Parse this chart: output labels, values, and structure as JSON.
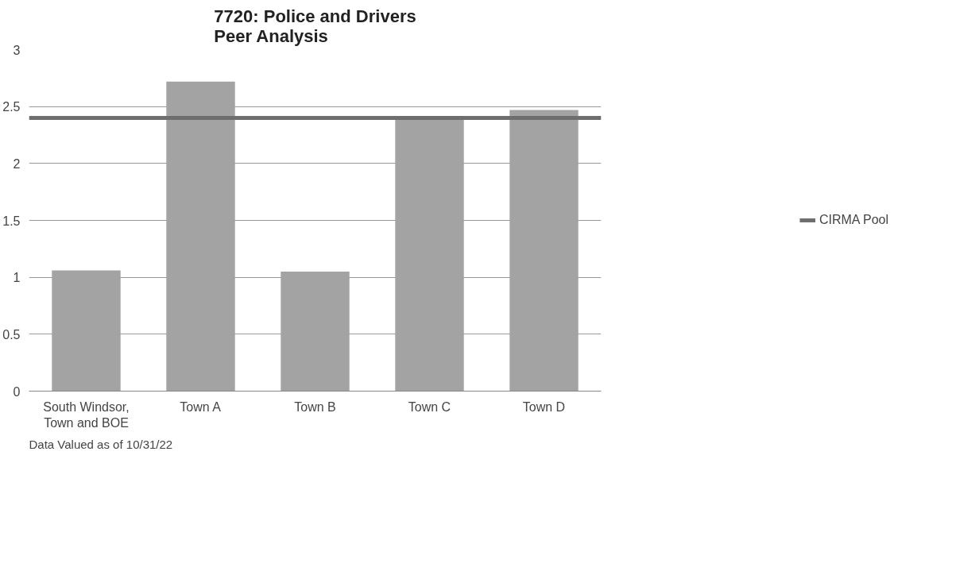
{
  "chart_data": {
    "type": "bar",
    "title": "7720: Police and Drivers\nPeer Analysis",
    "categories": [
      "South Windsor, Town and BOE",
      "Town A",
      "Town B",
      "Town C",
      "Town D"
    ],
    "values": [
      1.06,
      2.72,
      1.05,
      2.4,
      2.47
    ],
    "color": "#a3a3a3",
    "ylim": [
      0,
      3
    ],
    "yticks": [
      0,
      0.5,
      1,
      1.5,
      2,
      2.5,
      3
    ],
    "grid": "y",
    "ref_lines": [
      {
        "axis": "y",
        "value": 2.4,
        "label": "CIRMA Pool",
        "color": "#6e6e6e"
      }
    ],
    "legend": "right",
    "annotations": [
      "Data Valued as of 10/31/22"
    ]
  }
}
